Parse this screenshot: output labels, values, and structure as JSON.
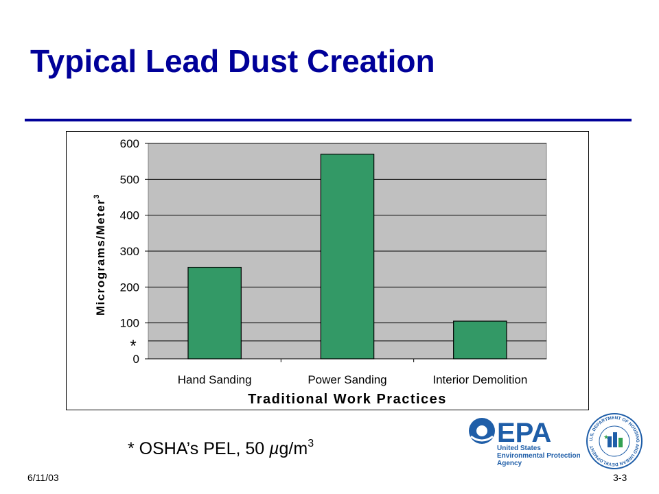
{
  "slide": {
    "title": "Typical Lead Dust Creation",
    "footnote": {
      "prefix": "* OSHA’s PEL, 50 ",
      "mu": "µ",
      "unit": "g/m",
      "exp": "3"
    },
    "date": "6/11/03",
    "page": "3-3"
  },
  "logos": {
    "epa": {
      "wordmark": "EPA",
      "lines": [
        "United States",
        "Environmental Protection",
        "Agency"
      ]
    },
    "hud": {
      "ring_text": "U.S. DEPARTMENT OF HOUSING AND URBAN DEVELOPMENT"
    }
  },
  "colors": {
    "title": "#000099",
    "bar_fill": "#339966",
    "plot_bg": "#c0c0c0"
  },
  "chart_data": {
    "type": "bar",
    "categories": [
      "Hand Sanding",
      "Power Sanding",
      "Interior Demolition"
    ],
    "values": [
      255,
      570,
      105
    ],
    "ylabel": "Micrograms/Meter",
    "ylabel_sup": "3",
    "xlabel": "Traditional Work Practices",
    "ylim": [
      0,
      600
    ],
    "yticks": [
      0,
      100,
      200,
      300,
      400,
      500,
      600
    ],
    "reference_line": {
      "value": 50,
      "marker": "*"
    },
    "grid": true
  }
}
